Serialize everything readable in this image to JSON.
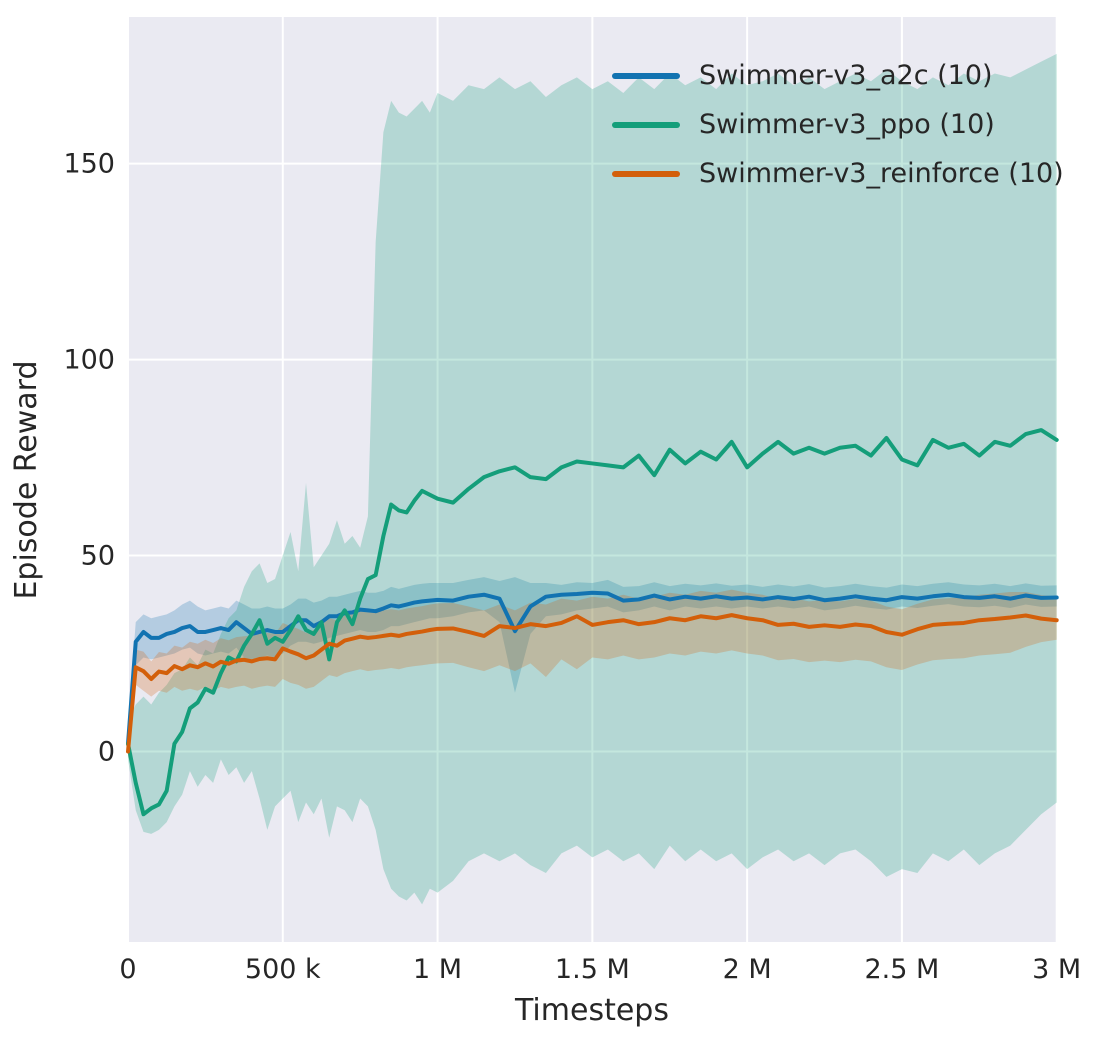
{
  "figure": {
    "background": "#ffffff",
    "plot_background": "#eaeaf2",
    "grid_color": "#ffffff",
    "text_color": "#262626"
  },
  "chart_data": {
    "type": "line",
    "title": "",
    "xlabel": "Timesteps",
    "ylabel": "Episode Reward",
    "grid": true,
    "legend_position": "upper right",
    "x_unit_note": "x values are timesteps in thousands",
    "xlim": [
      0,
      3000
    ],
    "ylim": [
      -48.6,
      187.4
    ],
    "x_ticks": [
      {
        "value": 0,
        "label": "0"
      },
      {
        "value": 500,
        "label": "500 k"
      },
      {
        "value": 1000,
        "label": "1 M"
      },
      {
        "value": 1500,
        "label": "1.5 M"
      },
      {
        "value": 2000,
        "label": "2 M"
      },
      {
        "value": 2500,
        "label": "2.5 M"
      },
      {
        "value": 3000,
        "label": "3 M"
      }
    ],
    "y_ticks": [
      {
        "value": 0,
        "label": "0"
      },
      {
        "value": 50,
        "label": "50"
      },
      {
        "value": 100,
        "label": "100"
      },
      {
        "value": 150,
        "label": "150"
      }
    ],
    "band_alpha": 0.25,
    "x": [
      0,
      25,
      50,
      75,
      100,
      125,
      150,
      175,
      200,
      225,
      250,
      275,
      300,
      325,
      350,
      375,
      400,
      425,
      450,
      475,
      500,
      525,
      550,
      575,
      600,
      625,
      650,
      675,
      700,
      725,
      750,
      775,
      800,
      825,
      850,
      875,
      900,
      925,
      950,
      975,
      1000,
      1050,
      1100,
      1150,
      1200,
      1250,
      1300,
      1350,
      1400,
      1450,
      1500,
      1550,
      1600,
      1650,
      1700,
      1750,
      1800,
      1850,
      1900,
      1950,
      2000,
      2050,
      2100,
      2150,
      2200,
      2250,
      2300,
      2350,
      2400,
      2450,
      2500,
      2550,
      2600,
      2650,
      2700,
      2750,
      2800,
      2850,
      2900,
      2950,
      3000
    ],
    "series": [
      {
        "name": "Swimmer-v3_a2c (10)",
        "color": "#1273b1",
        "mean": [
          2,
          28,
          30.5,
          29,
          29,
          30,
          30.5,
          31.5,
          32,
          30.5,
          30.5,
          31,
          31.5,
          31,
          33,
          31.5,
          30,
          30.5,
          31,
          30.5,
          30.5,
          32,
          33.5,
          33.5,
          32,
          33,
          34.5,
          34.5,
          35.3,
          35.5,
          36.2,
          36,
          35.8,
          36.5,
          37.3,
          37,
          37.5,
          38,
          38.3,
          38.5,
          38.7,
          38.5,
          39.5,
          40,
          39,
          30.7,
          37,
          39.5,
          40,
          40.2,
          40.5,
          40.3,
          38.5,
          38.8,
          39.8,
          38.8,
          39.5,
          39,
          39.6,
          39,
          39.3,
          38.8,
          39.4,
          38.9,
          39.5,
          38.6,
          39,
          39.6,
          39,
          38.6,
          39.4,
          39,
          39.6,
          40,
          39.4,
          39.2,
          39.6,
          39,
          39.8,
          39.2,
          39.3
        ],
        "lo": [
          0,
          22,
          24,
          23.5,
          24,
          24.5,
          25,
          26,
          26.5,
          25,
          24.5,
          25,
          25.5,
          25,
          26.5,
          24,
          23,
          24,
          24.5,
          24,
          25,
          27,
          28,
          28,
          27.5,
          28,
          29,
          29.5,
          30,
          30.5,
          31,
          30.5,
          30.5,
          31,
          32,
          32,
          32.5,
          33,
          33.5,
          34,
          34,
          34.5,
          35.5,
          36,
          33,
          15,
          30,
          34.5,
          35,
          36,
          36.5,
          37,
          35.5,
          36,
          37,
          36,
          37,
          36.5,
          37,
          36.5,
          37,
          36.5,
          37,
          36.5,
          37,
          36,
          36.5,
          37.2,
          36.6,
          36.2,
          37,
          36.6,
          37.2,
          37.6,
          37,
          36.8,
          37.2,
          36.6,
          37.5,
          36.9,
          37
        ],
        "hi": [
          6,
          33,
          35,
          34,
          34.5,
          35,
          36,
          37.5,
          38.5,
          37,
          36,
          36.5,
          37,
          36.5,
          38.5,
          37.5,
          36.5,
          36.5,
          37,
          36.5,
          36.5,
          37.5,
          39,
          39,
          38,
          38.5,
          39.5,
          39.5,
          40,
          40.5,
          41,
          40.5,
          40.5,
          41,
          42,
          41.5,
          42,
          42.5,
          42.8,
          43,
          43,
          43,
          43.8,
          44.5,
          43.5,
          44.5,
          43,
          43,
          42.5,
          43.2,
          43,
          43.8,
          42,
          42.2,
          43.2,
          42.2,
          42.8,
          42.4,
          42.9,
          42.3,
          42.6,
          42,
          42.6,
          42.1,
          42.7,
          41.8,
          42.2,
          42.8,
          42.2,
          41.8,
          42.6,
          42.2,
          42.8,
          43.2,
          42.6,
          42.4,
          42.8,
          42.2,
          42.9,
          42.3,
          42.4
        ]
      },
      {
        "name": "Swimmer-v3_ppo (10)",
        "color": "#149e7a",
        "mean": [
          2,
          -8,
          -16,
          -14.5,
          -13.5,
          -10,
          2,
          5,
          11,
          12.5,
          16,
          15,
          20,
          24,
          23,
          27,
          30,
          33.5,
          27.5,
          29,
          28,
          31,
          34.5,
          31,
          30,
          33,
          23.5,
          33,
          36,
          32.5,
          39,
          44,
          45,
          55,
          63,
          61.5,
          61,
          64,
          66.5,
          65.5,
          64.5,
          63.5,
          67,
          70,
          71.5,
          72.5,
          70,
          69.5,
          72.5,
          74,
          73.5,
          73,
          72.5,
          75.5,
          70.5,
          77,
          73.5,
          76.5,
          74.5,
          79,
          72.5,
          76,
          79,
          76,
          77.5,
          76,
          77.5,
          78,
          75.5,
          80,
          74.5,
          73,
          79.5,
          77.5,
          78.5,
          75.5,
          79,
          78,
          81,
          82,
          79.5
        ],
        "lo": [
          -2,
          -15,
          -20.5,
          -21,
          -20,
          -18,
          -14,
          -11,
          -5,
          -9,
          -6,
          -8,
          -2,
          -6,
          -4,
          -8,
          -5,
          -12,
          -20,
          -14,
          -12,
          -10,
          -18,
          -13,
          -16,
          -12,
          -22,
          -14,
          -15,
          -18,
          -12,
          -14,
          -20,
          -30,
          -35,
          -37,
          -38,
          -36,
          -39,
          -35,
          -36,
          -33,
          -28,
          -26,
          -28,
          -26,
          -29,
          -31,
          -26,
          -24,
          -27,
          -25,
          -28,
          -26,
          -30,
          -24,
          -28,
          -25,
          -28,
          -26,
          -30,
          -27,
          -25,
          -28,
          -26,
          -29,
          -26,
          -25,
          -28,
          -32,
          -30,
          -31,
          -26,
          -28,
          -25,
          -29,
          -26,
          -24,
          -20,
          -16,
          -13
        ],
        "hi": [
          8,
          12,
          14,
          12,
          15,
          17,
          20,
          21,
          24,
          22,
          26,
          25,
          30,
          34,
          36,
          42,
          46,
          48,
          43,
          44,
          50,
          56,
          46,
          68.5,
          47,
          50,
          53,
          59,
          53,
          55,
          52,
          60,
          130,
          158,
          166,
          163,
          162,
          164,
          166,
          163,
          168,
          166,
          170,
          169,
          172,
          169,
          171,
          167,
          170,
          172,
          169,
          171,
          168,
          172,
          169,
          173,
          170,
          172,
          169,
          173,
          170,
          171,
          173,
          170,
          172,
          169,
          171,
          173,
          171,
          174,
          171,
          169,
          172,
          170,
          173,
          171,
          173,
          172,
          174,
          176,
          178
        ]
      },
      {
        "name": "Swimmer-v3_reinforce (10)",
        "color": "#d35f0a",
        "mean": [
          0,
          21.5,
          20.5,
          18.5,
          20.4,
          20,
          21.8,
          21,
          22,
          21.5,
          22.5,
          21.7,
          22.9,
          22.4,
          23.2,
          23.4,
          23,
          23.6,
          23.8,
          23.5,
          26.3,
          25.5,
          24.8,
          23.8,
          24.5,
          26,
          27.5,
          27,
          28.3,
          28.8,
          29.3,
          29,
          29.2,
          29.5,
          29.8,
          29.5,
          30,
          30.3,
          30.6,
          31,
          31.3,
          31.4,
          30.5,
          29.5,
          32,
          31.5,
          32.5,
          32,
          32.8,
          34.5,
          32.3,
          33,
          33.5,
          32.5,
          33,
          34,
          33.5,
          34.5,
          34,
          34.8,
          34,
          33.5,
          32.3,
          32.6,
          31.8,
          32.2,
          31.8,
          32.4,
          32,
          30.5,
          29.8,
          31.2,
          32.3,
          32.6,
          32.8,
          33.5,
          33.8,
          34.2,
          34.7,
          33.9,
          33.5
        ],
        "lo": [
          -2,
          17,
          15.5,
          14,
          15.5,
          15,
          16.5,
          15.5,
          16,
          15.5,
          16.5,
          15.5,
          16.5,
          16,
          16.5,
          16.8,
          16,
          16.5,
          16.8,
          16.5,
          18.5,
          17.5,
          17,
          16,
          16.5,
          18,
          19.5,
          19,
          20,
          20.5,
          21,
          20.5,
          20.8,
          21,
          21.3,
          21,
          21.5,
          21.8,
          22,
          22.3,
          22.5,
          22.6,
          21.5,
          20.5,
          22,
          20.5,
          22.5,
          19,
          23.5,
          21,
          24,
          23.5,
          24.5,
          23.5,
          24,
          25,
          24.5,
          25.5,
          25,
          25.8,
          25,
          24.5,
          23.3,
          23.6,
          22.8,
          23.2,
          22.8,
          23.4,
          23,
          21.5,
          20.8,
          22.2,
          23.3,
          23.6,
          23.8,
          24.5,
          24.8,
          25.2,
          26.7,
          27.9,
          28.5
        ],
        "hi": [
          2,
          26,
          25.5,
          23,
          25.4,
          25,
          27,
          26.5,
          28,
          27.5,
          28.5,
          27.7,
          28.9,
          28.4,
          29.2,
          29.4,
          29.5,
          30.1,
          30.3,
          30,
          32.8,
          32,
          31.3,
          30.3,
          31,
          32.5,
          34,
          33.5,
          34.8,
          35.3,
          35.8,
          35.5,
          35.7,
          36,
          36.3,
          36,
          36.5,
          36.8,
          37.1,
          37.5,
          37.8,
          37.9,
          37,
          36,
          37.5,
          36,
          38,
          37.5,
          39,
          38.5,
          39.5,
          39,
          40,
          39,
          39.5,
          40.5,
          40,
          41,
          40.5,
          41.3,
          40.5,
          40,
          38.8,
          39.1,
          38.3,
          38.7,
          38.3,
          38.9,
          38.5,
          37,
          36.3,
          37.7,
          38.8,
          39.1,
          39.3,
          40,
          40.3,
          40.7,
          40.7,
          39.9,
          39.5
        ]
      }
    ]
  }
}
